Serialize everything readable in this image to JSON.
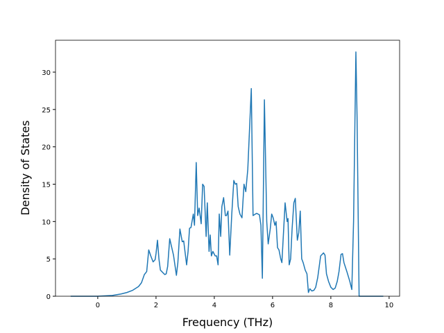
{
  "chart_data": {
    "type": "line",
    "xlabel": "Frequency (THz)",
    "ylabel": "Density of States",
    "color": "#1f77b4",
    "x": [
      -0.93,
      0,
      0.5,
      0.8,
      1.0,
      1.2,
      1.4,
      1.5,
      1.6,
      1.68,
      1.75,
      1.82,
      1.9,
      1.97,
      2.0,
      2.05,
      2.1,
      2.15,
      2.3,
      2.35,
      2.4,
      2.47,
      2.6,
      2.7,
      2.75,
      2.82,
      2.9,
      2.95,
      3.05,
      3.1,
      3.15,
      3.2,
      3.28,
      3.32,
      3.38,
      3.43,
      3.48,
      3.55,
      3.6,
      3.65,
      3.72,
      3.76,
      3.82,
      3.86,
      3.9,
      3.95,
      4.03,
      4.08,
      4.13,
      4.17,
      4.22,
      4.26,
      4.32,
      4.38,
      4.42,
      4.47,
      4.53,
      4.6,
      4.67,
      4.72,
      4.77,
      4.82,
      4.88,
      4.95,
      5.02,
      5.08,
      5.15,
      5.27,
      5.33,
      5.45,
      5.55,
      5.6,
      5.65,
      5.72,
      5.8,
      5.85,
      5.92,
      5.97,
      6.02,
      6.08,
      6.12,
      6.17,
      6.22,
      6.28,
      6.32,
      6.43,
      6.5,
      6.53,
      6.57,
      6.62,
      6.67,
      6.73,
      6.78,
      6.85,
      6.9,
      6.95,
      7.0,
      7.05,
      7.12,
      7.18,
      7.23,
      7.28,
      7.35,
      7.42,
      7.48,
      7.55,
      7.65,
      7.75,
      7.8,
      7.85,
      7.92,
      8.0,
      8.08,
      8.15,
      8.22,
      8.28,
      8.35,
      8.4,
      8.45,
      8.55,
      8.65,
      8.72,
      8.78,
      8.86,
      8.9,
      8.97,
      9.8
    ],
    "values": [
      0,
      0,
      0.1,
      0.3,
      0.5,
      0.8,
      1.3,
      1.8,
      2.9,
      3.3,
      6.2,
      5.4,
      4.6,
      4.9,
      5.7,
      7.5,
      5,
      3.5,
      2.9,
      3,
      4,
      7.7,
      5.5,
      2.8,
      4.5,
      9,
      7.3,
      7.4,
      4.2,
      6,
      9.1,
      9.2,
      11,
      9.5,
      17.9,
      10.8,
      11.8,
      9.7,
      15,
      14.7,
      8,
      12.5,
      6,
      8.2,
      5.4,
      6,
      5.4,
      5.4,
      4.2,
      11,
      8,
      12,
      13.2,
      10.8,
      10.8,
      11.4,
      5.5,
      11,
      15.5,
      15,
      15.1,
      12,
      11,
      10.5,
      15,
      14,
      17,
      27.8,
      10.8,
      11.1,
      10.9,
      9.5,
      2.4,
      26.3,
      10,
      7,
      9,
      11,
      10.5,
      9.5,
      10,
      6.5,
      6.2,
      5,
      4.5,
      12.5,
      10,
      10.4,
      4.2,
      5,
      9,
      12.5,
      13.1,
      7.5,
      8.5,
      11.4,
      5,
      4.5,
      3.5,
      3,
      0.5,
      1,
      0.7,
      0.8,
      1.2,
      2.5,
      5.4,
      5.8,
      5.5,
      3,
      2,
      1.2,
      0.9,
      1.1,
      2,
      3.3,
      5.6,
      5.7,
      4.5,
      3.3,
      2,
      0.9,
      10,
      32.7,
      24,
      0,
      0
    ],
    "xlim": [
      -1.45,
      10.36
    ],
    "ylim": [
      0,
      34.27
    ],
    "xticks": [
      0,
      2,
      4,
      6,
      8,
      10
    ],
    "yticks": [
      0,
      5,
      10,
      15,
      20,
      25,
      30
    ],
    "grid": false
  }
}
